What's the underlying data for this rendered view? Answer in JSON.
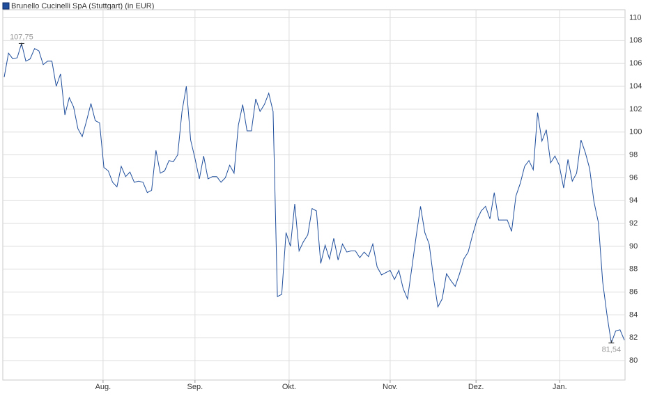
{
  "chart_data": {
    "type": "line",
    "title": "Brunello Cucinelli SpA (Stuttgart) (in EUR)",
    "series": [
      {
        "name": "Brunello Cucinelli SpA (Stuttgart) (in EUR)",
        "color": "#1f4e9c",
        "values": [
          104.8,
          106.9,
          106.4,
          106.5,
          107.75,
          106.2,
          106.4,
          107.3,
          107.1,
          105.9,
          106.2,
          106.2,
          104.0,
          105.1,
          101.5,
          103.0,
          102.2,
          100.3,
          99.6,
          101.0,
          102.5,
          101.0,
          100.8,
          96.9,
          96.6,
          95.6,
          95.2,
          97.0,
          96.1,
          96.5,
          95.6,
          95.7,
          95.6,
          94.7,
          94.9,
          98.4,
          96.4,
          96.6,
          97.5,
          97.4,
          98.0,
          101.8,
          104.0,
          99.3,
          97.7,
          95.9,
          97.9,
          95.9,
          96.1,
          96.1,
          95.6,
          96.0,
          97.1,
          96.4,
          100.6,
          102.4,
          100.1,
          100.1,
          102.9,
          101.8,
          102.4,
          103.4,
          101.8,
          85.6,
          85.8,
          91.2,
          90.0,
          93.7,
          89.6,
          90.4,
          91.0,
          93.3,
          93.1,
          88.5,
          90.1,
          88.9,
          90.7,
          88.8,
          90.2,
          89.5,
          89.6,
          89.6,
          89.0,
          89.5,
          89.1,
          90.2,
          88.2,
          87.5,
          87.7,
          87.9,
          87.1,
          87.9,
          86.3,
          85.4,
          88.1,
          90.9,
          93.5,
          91.2,
          90.2,
          87.2,
          84.7,
          85.4,
          87.6,
          87.0,
          86.5,
          87.6,
          88.9,
          89.5,
          91.0,
          92.3,
          93.1,
          93.5,
          92.4,
          94.7,
          92.3,
          92.3,
          92.3,
          91.3,
          94.4,
          95.5,
          97.0,
          97.5,
          96.7,
          101.7,
          99.2,
          100.2,
          97.3,
          97.9,
          97.1,
          95.1,
          97.6,
          95.7,
          96.4,
          99.3,
          98.2,
          96.8,
          93.9,
          92.1,
          86.9,
          84.0,
          81.54,
          82.6,
          82.7,
          81.8
        ]
      }
    ],
    "xlim": [
      0,
      143
    ],
    "xticks": [
      {
        "value": 22.8,
        "label": "Aug."
      },
      {
        "value": 44.0,
        "label": "Sep."
      },
      {
        "value": 65.7,
        "label": "Okt."
      },
      {
        "value": 89.0,
        "label": "Nov."
      },
      {
        "value": 108.8,
        "label": "Dez."
      },
      {
        "value": 128.1,
        "label": "Jan."
      }
    ],
    "ylim": [
      78.3,
      110.7
    ],
    "yticks": [
      80,
      82,
      84,
      86,
      88,
      90,
      92,
      94,
      96,
      98,
      100,
      102,
      104,
      106,
      108,
      110
    ],
    "grid": true,
    "annotations": [
      {
        "x": 4,
        "value": 107.75,
        "label": "107,75",
        "position": "above"
      },
      {
        "x": 140,
        "value": 81.54,
        "label": "81,54",
        "position": "below"
      }
    ]
  }
}
